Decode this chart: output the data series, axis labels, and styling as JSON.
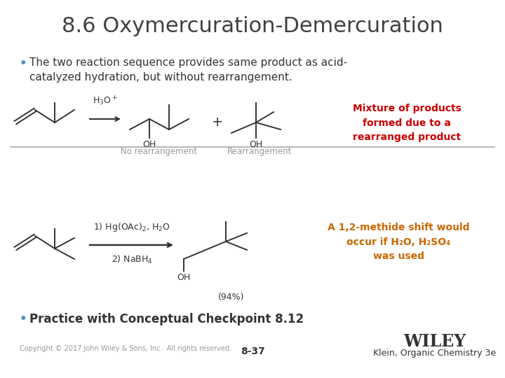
{
  "title": "8.6 Oxymercuration-Demercuration",
  "bullet1": "The two reaction sequence provides same product as acid-\ncatalyzed hydration, but without rearrangement.",
  "bullet_color": "#4a90c4",
  "red_text": "Mixture of products\nformed due to a\nrearranged product",
  "red_color": "#cc0000",
  "orange_text": "A 1,2-methide shift would\noccur if H₂O, H₂SO₄\nwas used",
  "orange_color": "#cc6600",
  "label_no_rearr": "No rearrangement",
  "label_rearr": "Rearrangement",
  "label_yield": "(94%)",
  "bullet2": "Practice with Conceptual Checkpoint 8.12",
  "copyright": "Copyright © 2017 John Wiley & Sons, Inc.  All rights reserved.",
  "page_num": "8-37",
  "wiley": "WILEY",
  "klein": "Klein, Organic Chemistry 3e",
  "bg_color": "#ffffff",
  "title_color": "#404040",
  "body_color": "#333333",
  "gray_label_color": "#999999",
  "divider_color": "#aaaaaa"
}
